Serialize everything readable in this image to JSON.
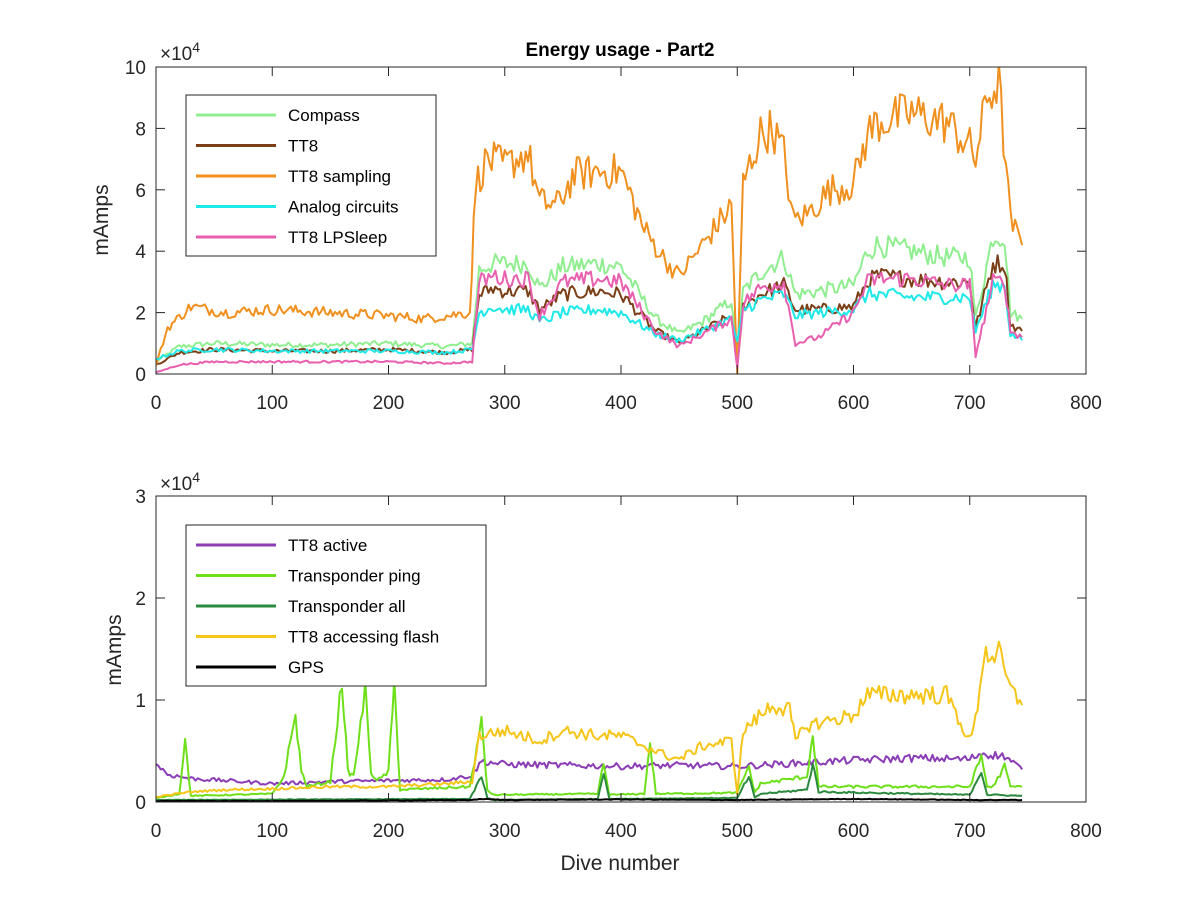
{
  "figure": {
    "title": "Energy usage - Part2"
  },
  "chart_data": [
    {
      "type": "line",
      "title": "Energy usage - Part2",
      "xlabel": "",
      "ylabel": "mAmps",
      "xlim": [
        0,
        800
      ],
      "ylim": [
        0,
        100000
      ],
      "xticks": [
        "0",
        "100",
        "200",
        "300",
        "400",
        "500",
        "600",
        "700",
        "800"
      ],
      "yticks": [
        "0",
        "2",
        "4",
        "6",
        "8",
        "10"
      ],
      "y_exponent_label": "×10",
      "y_exponent_power": "4",
      "legend_position": "top-left",
      "grid": false,
      "series": [
        {
          "name": "Compass",
          "color": "#90ee90",
          "x": [
            0,
            20,
            50,
            100,
            150,
            200,
            250,
            272,
            278,
            290,
            300,
            320,
            330,
            350,
            380,
            400,
            430,
            450,
            470,
            495,
            500,
            505,
            520,
            540,
            550,
            570,
            600,
            612,
            620,
            650,
            680,
            700,
            705,
            720,
            730,
            735,
            745
          ],
          "y": [
            4000,
            9000,
            10000,
            9500,
            9500,
            10000,
            9000,
            10000,
            34000,
            36000,
            36000,
            36000,
            28000,
            35000,
            36000,
            35000,
            18000,
            13000,
            17000,
            24000,
            4000,
            27000,
            33000,
            38000,
            26000,
            27000,
            29000,
            40000,
            42000,
            40000,
            38000,
            38000,
            18000,
            45000,
            45000,
            20000,
            18000
          ]
        },
        {
          "name": "TT8",
          "color": "#7b3f17",
          "x": [
            0,
            20,
            50,
            100,
            150,
            200,
            250,
            272,
            278,
            290,
            300,
            320,
            330,
            350,
            380,
            400,
            430,
            450,
            470,
            495,
            500,
            505,
            520,
            540,
            550,
            570,
            600,
            612,
            620,
            650,
            680,
            700,
            705,
            720,
            730,
            735,
            745
          ],
          "y": [
            3000,
            7000,
            8000,
            7500,
            7500,
            8000,
            7000,
            8000,
            26000,
            28000,
            27000,
            27000,
            21000,
            26000,
            27000,
            26000,
            14000,
            10000,
            14000,
            19000,
            3000,
            22000,
            26000,
            29000,
            21000,
            21000,
            22000,
            30000,
            32000,
            31000,
            30000,
            30000,
            15000,
            36000,
            36000,
            16000,
            14000
          ]
        },
        {
          "name": "TT8 sampling",
          "color": "#f0901e",
          "x": [
            0,
            10,
            30,
            60,
            100,
            150,
            200,
            230,
            270,
            275,
            285,
            300,
            320,
            330,
            345,
            360,
            380,
            400,
            420,
            440,
            450,
            470,
            495,
            500,
            505,
            520,
            530,
            540,
            548,
            560,
            580,
            600,
            612,
            620,
            650,
            680,
            700,
            705,
            715,
            725,
            735,
            745
          ],
          "y": [
            3000,
            15000,
            22000,
            20000,
            21000,
            20000,
            19000,
            18000,
            20000,
            62000,
            70000,
            68000,
            72000,
            56000,
            55000,
            65000,
            66000,
            66000,
            47000,
            36000,
            32000,
            42000,
            55000,
            0,
            62000,
            78000,
            80000,
            72000,
            50000,
            52000,
            60000,
            62000,
            78000,
            82000,
            85000,
            82000,
            74000,
            70000,
            90000,
            95000,
            50000,
            42000
          ]
        },
        {
          "name": "Analog circuits",
          "color": "#1ee8e8",
          "x": [
            0,
            20,
            50,
            100,
            150,
            200,
            250,
            272,
            278,
            290,
            300,
            320,
            330,
            350,
            380,
            400,
            430,
            450,
            470,
            495,
            500,
            505,
            520,
            540,
            550,
            570,
            600,
            612,
            620,
            650,
            680,
            700,
            705,
            720,
            730,
            735,
            745
          ],
          "y": [
            5000,
            7500,
            8000,
            7500,
            7500,
            7500,
            7000,
            8000,
            20000,
            22000,
            21000,
            21000,
            17000,
            20000,
            21000,
            20000,
            13000,
            11000,
            14000,
            18000,
            10000,
            21000,
            24000,
            26000,
            19000,
            20000,
            21000,
            26000,
            26000,
            25000,
            25000,
            25000,
            14000,
            29000,
            29000,
            13000,
            11000
          ]
        },
        {
          "name": "TT8 LPSleep",
          "color": "#e85fb0",
          "x": [
            0,
            20,
            50,
            100,
            150,
            200,
            250,
            272,
            278,
            290,
            300,
            320,
            330,
            350,
            380,
            400,
            430,
            450,
            470,
            495,
            500,
            505,
            520,
            540,
            550,
            570,
            600,
            612,
            620,
            650,
            680,
            700,
            705,
            720,
            730,
            735,
            745
          ],
          "y": [
            500,
            3000,
            4000,
            4000,
            4000,
            4000,
            3500,
            4000,
            30000,
            32000,
            31000,
            31000,
            19000,
            30000,
            31000,
            30000,
            14000,
            9000,
            13000,
            18000,
            2000,
            23000,
            28000,
            30000,
            10000,
            12000,
            20000,
            30000,
            31000,
            31000,
            29000,
            29000,
            6000,
            30000,
            30000,
            14000,
            12000
          ]
        }
      ]
    },
    {
      "type": "line",
      "title": "",
      "xlabel": "Dive number",
      "ylabel": "mAmps",
      "xlim": [
        0,
        800
      ],
      "ylim": [
        0,
        30000
      ],
      "xticks": [
        "0",
        "100",
        "200",
        "300",
        "400",
        "500",
        "600",
        "700",
        "800"
      ],
      "yticks": [
        "0",
        "1",
        "2",
        "3"
      ],
      "y_exponent_label": "×10",
      "y_exponent_power": "4",
      "legend_position": "top-left",
      "grid": false,
      "series": [
        {
          "name": "TT8 active",
          "color": "#8b3db5",
          "x": [
            0,
            10,
            30,
            60,
            100,
            150,
            200,
            250,
            272,
            280,
            300,
            350,
            400,
            450,
            500,
            550,
            600,
            650,
            700,
            710,
            720,
            730,
            745
          ],
          "y": [
            3800,
            2700,
            2300,
            2100,
            1800,
            2000,
            2100,
            2200,
            2600,
            4000,
            3700,
            3600,
            3500,
            3600,
            3500,
            3800,
            4100,
            4300,
            4200,
            4800,
            4600,
            4500,
            3200
          ]
        },
        {
          "name": "Transponder ping",
          "color": "#6ee01a",
          "x": [
            0,
            20,
            25,
            30,
            100,
            110,
            120,
            125,
            130,
            150,
            160,
            165,
            170,
            180,
            185,
            190,
            200,
            205,
            210,
            270,
            280,
            285,
            290,
            380,
            385,
            390,
            420,
            425,
            430,
            500,
            510,
            515,
            520,
            560,
            565,
            570,
            700,
            710,
            715,
            720,
            730,
            735,
            745
          ],
          "y": [
            400,
            800,
            6000,
            600,
            800,
            2500,
            8500,
            3000,
            1500,
            2000,
            12000,
            3000,
            2500,
            11000,
            3000,
            2000,
            3000,
            11500,
            1200,
            1500,
            7800,
            1200,
            700,
            800,
            3800,
            700,
            800,
            5800,
            800,
            900,
            3500,
            900,
            1800,
            2500,
            6600,
            1500,
            1500,
            4500,
            1500,
            1500,
            3500,
            1500,
            1500
          ]
        },
        {
          "name": "Transponder all",
          "color": "#2b8a3e",
          "x": [
            0,
            270,
            280,
            285,
            290,
            380,
            385,
            390,
            500,
            510,
            515,
            520,
            560,
            565,
            570,
            700,
            710,
            715,
            720,
            745
          ],
          "y": [
            200,
            300,
            2500,
            400,
            200,
            300,
            3000,
            300,
            400,
            2500,
            400,
            800,
            1200,
            3800,
            1000,
            700,
            3000,
            700,
            700,
            600
          ]
        },
        {
          "name": "TT8 accessing flash",
          "color": "#f5c518",
          "x": [
            0,
            30,
            60,
            100,
            150,
            200,
            250,
            272,
            278,
            300,
            330,
            350,
            380,
            400,
            440,
            450,
            470,
            495,
            500,
            505,
            530,
            545,
            550,
            560,
            600,
            612,
            620,
            650,
            680,
            700,
            705,
            712,
            725,
            735,
            745
          ],
          "y": [
            500,
            1000,
            1200,
            1300,
            1500,
            1500,
            1800,
            2000,
            6500,
            7000,
            6000,
            7000,
            6500,
            6500,
            4500,
            4200,
            5500,
            6000,
            800,
            7000,
            9500,
            9000,
            6000,
            7500,
            8500,
            10500,
            10500,
            10500,
            10500,
            6000,
            8000,
            14500,
            14500,
            11000,
            9500
          ]
        },
        {
          "name": "GPS",
          "color": "#000000",
          "x": [
            0,
            100,
            200,
            272,
            280,
            300,
            400,
            500,
            600,
            700,
            745
          ],
          "y": [
            100,
            100,
            150,
            200,
            300,
            200,
            250,
            200,
            300,
            200,
            200
          ]
        }
      ]
    }
  ]
}
